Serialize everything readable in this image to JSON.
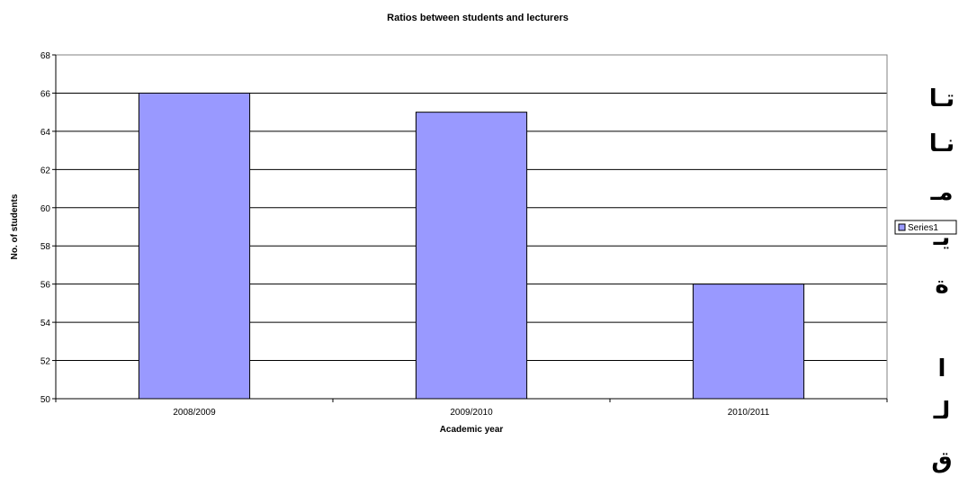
{
  "chart_data": {
    "type": "bar",
    "title": "Ratios between students and lecturers",
    "xlabel": "Academic year",
    "ylabel": "No. of students",
    "categories": [
      "2008/2009",
      "2009/2010",
      "2010/2011"
    ],
    "series": [
      {
        "name": "Series1",
        "values": [
          66,
          65,
          56
        ]
      }
    ],
    "ylim": [
      50,
      68
    ],
    "ytick_step": 2,
    "grid": true,
    "legend_position": "right",
    "bar_color": "#9999ff",
    "bar_stroke": "#000000",
    "plot_border": "#808080"
  },
  "side_text": [
    "تـا",
    "نـا",
    "مـ",
    "يـ",
    "ة",
    "ا",
    "لـ",
    "ق"
  ]
}
